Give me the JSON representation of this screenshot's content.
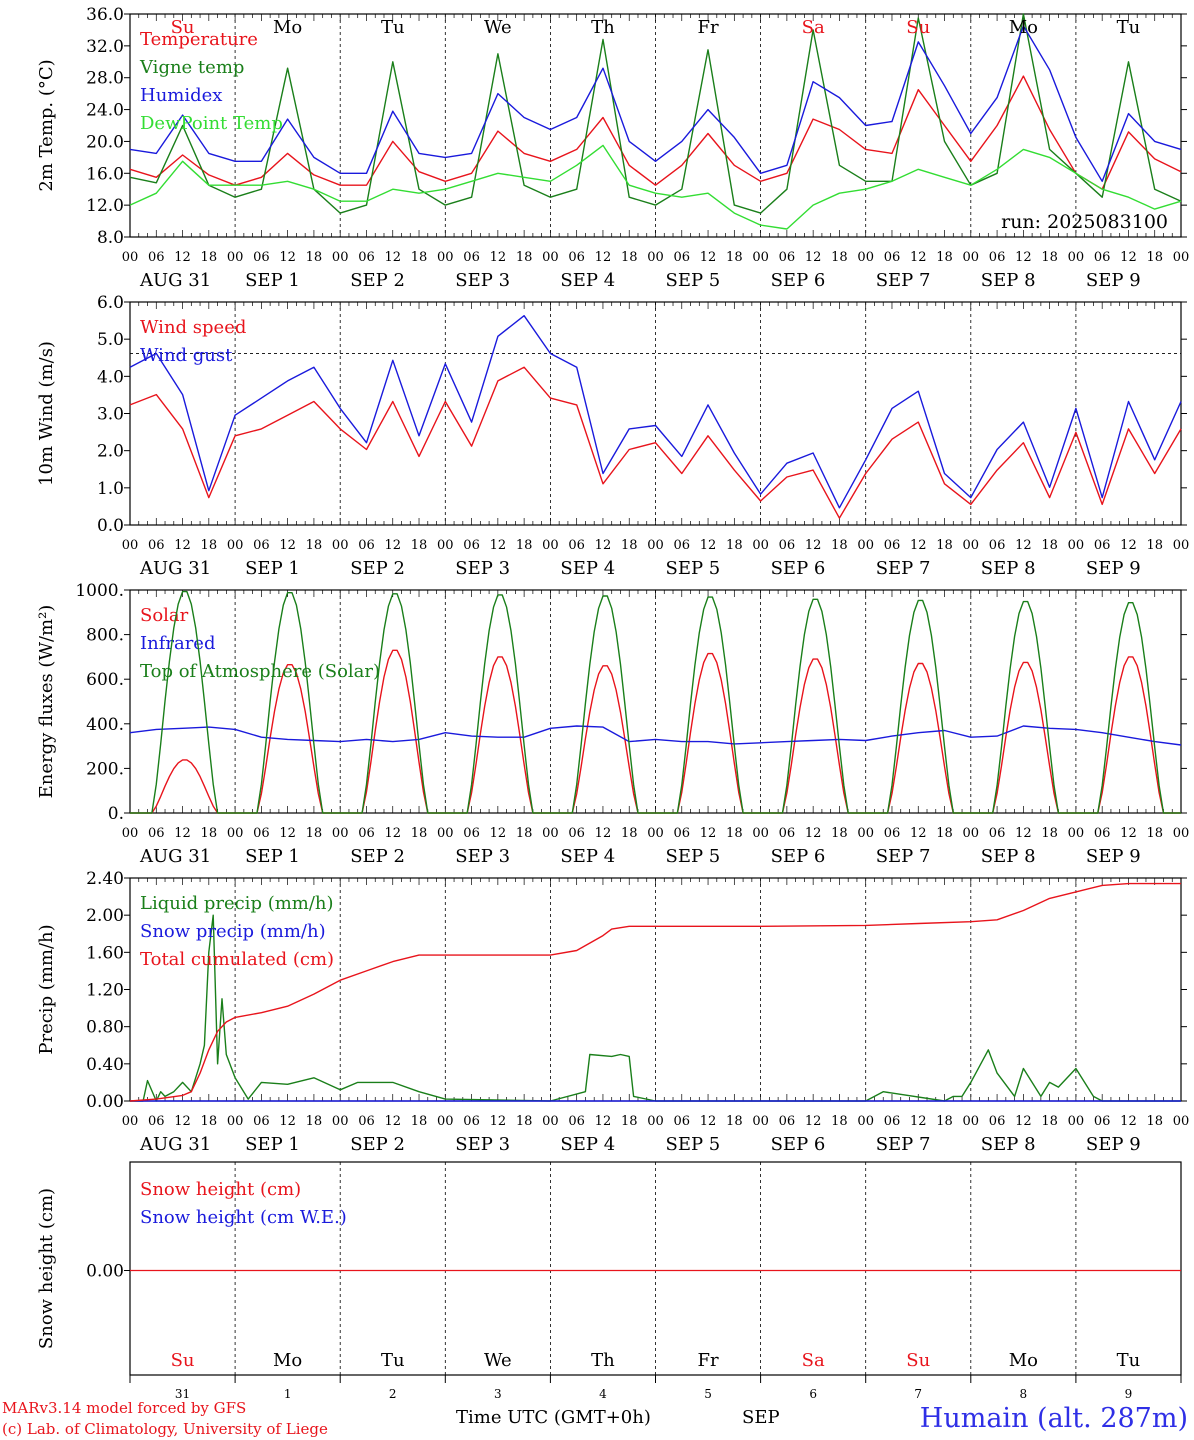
{
  "colors": {
    "red": "#e8141c",
    "green": "#1a7f1a",
    "blue": "#1a1adc",
    "lightgreen": "#33dd33",
    "axis": "#000000",
    "title": "#2f2fe6"
  },
  "days": [
    "Su",
    "Mo",
    "Tu",
    "We",
    "Th",
    "Fr",
    "Sa",
    "Su",
    "Mo",
    "Tu"
  ],
  "weekend_days": [
    0,
    6,
    7
  ],
  "date_labels": [
    "AUG 31",
    "SEP  1",
    "SEP  2",
    "SEP  3",
    "SEP  4",
    "SEP  5",
    "SEP  6",
    "SEP  7",
    "SEP  8",
    "SEP  9"
  ],
  "hour_ticks": [
    "00",
    "06",
    "12",
    "18"
  ],
  "day_numbers": [
    "31",
    "1",
    "2",
    "3",
    "4",
    "5",
    "6",
    "7",
    "8",
    "9"
  ],
  "run_label": "run: 2025083100",
  "footer": {
    "credit1": "MARv3.14 model forced by GFS",
    "credit2": "(c) Lab. of Climatology, University of Liege",
    "time_label": "Time UTC (GMT+0h)",
    "month": "SEP",
    "station": "Humain (alt. 287m)"
  },
  "chart_data": [
    {
      "type": "line",
      "ylabel": "2m Temp. (°C)",
      "ylim": [
        8,
        36
      ],
      "yticks": [
        "8.0",
        "12.0",
        "16.0",
        "20.0",
        "24.0",
        "28.0",
        "32.0",
        "36.0"
      ],
      "x_hours": [
        0,
        6,
        12,
        18,
        24,
        30,
        36,
        42,
        48,
        54,
        60,
        66,
        72,
        78,
        84,
        90,
        96,
        102,
        108,
        114,
        120,
        126,
        132,
        138,
        144,
        150,
        156,
        162,
        168,
        174,
        180,
        186,
        192,
        198,
        204,
        210,
        216,
        222,
        228,
        234,
        240
      ],
      "series": [
        {
          "name": "Temperature",
          "color": "red",
          "values": [
            16.5,
            15.5,
            18.3,
            15.8,
            14.5,
            15.5,
            18.5,
            15.8,
            14.5,
            14.5,
            20,
            16.2,
            15,
            16,
            21.3,
            18.5,
            17.5,
            19,
            23,
            17,
            14.5,
            17,
            21,
            17,
            15,
            16,
            22.8,
            21.5,
            19,
            18.5,
            26.5,
            22,
            17.5,
            22,
            28.2,
            21.5,
            16,
            14,
            21.2,
            17.8,
            16.2
          ]
        },
        {
          "name": "Vigne temp",
          "color": "green",
          "values": [
            15.5,
            14.8,
            22,
            14.5,
            13,
            14,
            29.2,
            14,
            11,
            12,
            30,
            14,
            12,
            13,
            31,
            14.5,
            13,
            14,
            32.8,
            13,
            12,
            14,
            31.5,
            12,
            11,
            14,
            34,
            17,
            15,
            15,
            35.5,
            20,
            14.5,
            16,
            36,
            19,
            16,
            13,
            30,
            14,
            12.5
          ]
        },
        {
          "name": "Humidex",
          "color": "blue",
          "values": [
            19,
            18.5,
            23.3,
            18.5,
            17.5,
            17.5,
            22.8,
            18,
            16,
            16,
            23.8,
            18.5,
            18,
            18.5,
            26,
            23,
            21.5,
            23,
            29.2,
            20,
            17.5,
            20,
            24,
            20.5,
            16,
            17,
            27.5,
            25.5,
            22,
            22.5,
            32.5,
            27,
            21,
            25.5,
            34.5,
            29,
            20.5,
            15,
            23.5,
            20,
            19
          ]
        },
        {
          "name": "DewPoint Temp",
          "color": "lightgreen",
          "values": [
            12,
            13.5,
            17.5,
            14.5,
            14.5,
            14.5,
            15,
            14,
            12.5,
            12.5,
            14,
            13.5,
            14,
            15,
            16,
            15.5,
            15,
            17,
            19.5,
            14.5,
            13.5,
            13,
            13.5,
            11,
            9.5,
            9,
            12,
            13.5,
            14,
            15,
            16.5,
            15.5,
            14.5,
            16.5,
            19,
            18,
            16,
            14,
            13,
            11.5,
            12.5
          ]
        }
      ]
    },
    {
      "type": "line",
      "ylabel": "10m Wind (m/s)",
      "ylim": [
        0,
        6.5
      ],
      "yticks": [
        "0.0",
        "1.0",
        "2.0",
        "3.0",
        "4.0",
        "5.0",
        "6.0"
      ],
      "dashed_reference": 5.0,
      "x_hours": [
        0,
        6,
        12,
        18,
        24,
        30,
        36,
        42,
        48,
        54,
        60,
        66,
        72,
        78,
        84,
        90,
        96,
        102,
        108,
        114,
        120,
        126,
        132,
        138,
        144,
        150,
        156,
        162,
        168,
        174,
        180,
        186,
        192,
        198,
        204,
        210,
        216,
        222,
        228,
        234,
        240
      ],
      "series": [
        {
          "name": "Wind speed",
          "color": "red",
          "values": [
            3.5,
            3.8,
            2.8,
            0.8,
            2.6,
            2.8,
            3.2,
            3.6,
            2.8,
            2.2,
            3.6,
            2,
            3.6,
            2.3,
            4.2,
            4.6,
            3.7,
            3.5,
            1.2,
            2.2,
            2.4,
            1.5,
            2.6,
            1.6,
            0.7,
            1.4,
            1.6,
            0.2,
            1.5,
            2.5,
            3,
            1.2,
            0.6,
            1.6,
            2.4,
            0.8,
            2.7,
            0.6,
            2.8,
            1.5,
            2.8
          ]
        },
        {
          "name": "Wind gust",
          "color": "blue",
          "values": [
            4.6,
            5.0,
            3.8,
            1.0,
            3.2,
            3.7,
            4.2,
            4.6,
            3.4,
            2.4,
            4.8,
            2.6,
            4.7,
            3.0,
            5.5,
            6.1,
            5.0,
            4.6,
            1.5,
            2.8,
            2.9,
            2.0,
            3.5,
            2.1,
            0.9,
            1.8,
            2.1,
            0.5,
            1.9,
            3.4,
            3.9,
            1.5,
            0.8,
            2.2,
            3.0,
            1.1,
            3.4,
            0.8,
            3.6,
            1.9,
            3.6
          ]
        }
      ]
    },
    {
      "type": "line",
      "ylabel": "Energy fluxes (W/m²)",
      "ylim": [
        0,
        1000
      ],
      "yticks": [
        "0.",
        "200.",
        "400.",
        "600.",
        "800.",
        "1000."
      ],
      "solar_noon_hour": 12.5,
      "solar_halfwidth_hours": 7.5,
      "series": [
        {
          "name": "Solar",
          "color": "red",
          "daily_peaks": [
            240,
            670,
            735,
            705,
            665,
            720,
            695,
            675,
            680,
            705
          ]
        },
        {
          "name": "Infrared",
          "color": "blue",
          "x_hours": [
            0,
            6,
            12,
            18,
            24,
            30,
            36,
            42,
            48,
            54,
            60,
            66,
            72,
            78,
            84,
            90,
            96,
            102,
            108,
            114,
            120,
            126,
            132,
            138,
            144,
            150,
            156,
            162,
            168,
            174,
            180,
            186,
            192,
            198,
            204,
            210,
            216,
            222,
            228,
            234,
            240
          ],
          "values": [
            360,
            375,
            380,
            385,
            375,
            340,
            330,
            325,
            320,
            330,
            320,
            330,
            360,
            345,
            340,
            340,
            380,
            390,
            385,
            320,
            330,
            320,
            320,
            310,
            315,
            320,
            325,
            330,
            325,
            345,
            360,
            370,
            340,
            345,
            390,
            380,
            375,
            360,
            340,
            320,
            305
          ]
        },
        {
          "name": "Top of Atmosphere (Solar)",
          "color": "green",
          "daily_peaks": [
            1000,
            995,
            990,
            985,
            980,
            975,
            965,
            960,
            955,
            950
          ]
        }
      ]
    },
    {
      "type": "line",
      "ylabel": "Precip (mm/h)",
      "ylim": [
        0,
        2.4
      ],
      "yticks": [
        "0.00",
        "0.40",
        "0.80",
        "1.20",
        "1.60",
        "2.00",
        "2.40"
      ],
      "series": [
        {
          "name": "Liquid precip (mm/h)",
          "color": "green",
          "x_hours": [
            0,
            3,
            4,
            6,
            7,
            8,
            10,
            12,
            14,
            16,
            17,
            18,
            19,
            20,
            21,
            22,
            24,
            27,
            30,
            36,
            42,
            48,
            52,
            56,
            60,
            66,
            72,
            96,
            104,
            105,
            110,
            112,
            114,
            115,
            120,
            168,
            172,
            186,
            188,
            190,
            192,
            196,
            198,
            202,
            204,
            208,
            210,
            212,
            216,
            220,
            222,
            224,
            226,
            228,
            240
          ],
          "values": [
            0,
            0,
            0.22,
            0,
            0.1,
            0.05,
            0.1,
            0.2,
            0.1,
            0.4,
            0.6,
            1.6,
            2.0,
            0.4,
            1.1,
            0.5,
            0.25,
            0.02,
            0.2,
            0.18,
            0.25,
            0.12,
            0.2,
            0.2,
            0.2,
            0.1,
            0.02,
            0,
            0.1,
            0.5,
            0.48,
            0.5,
            0.48,
            0.05,
            0,
            0,
            0.1,
            0,
            0.05,
            0.05,
            0.2,
            0.55,
            0.3,
            0.05,
            0.35,
            0.05,
            0.2,
            0.15,
            0.35,
            0.05,
            0,
            0,
            0,
            0,
            0
          ]
        },
        {
          "name": "Snow precip (mm/h)",
          "color": "blue",
          "x_hours": [
            0,
            240
          ],
          "values": [
            0,
            0
          ]
        },
        {
          "name": "Total cumulated (cm)",
          "color": "red",
          "x_hours": [
            0,
            6,
            12,
            14,
            16,
            18,
            20,
            22,
            24,
            30,
            36,
            42,
            48,
            54,
            60,
            66,
            72,
            84,
            96,
            102,
            108,
            110,
            114,
            120,
            144,
            168,
            180,
            192,
            198,
            204,
            210,
            216,
            222,
            228,
            240
          ],
          "values": [
            0,
            0.02,
            0.06,
            0.1,
            0.3,
            0.55,
            0.75,
            0.85,
            0.9,
            0.95,
            1.02,
            1.15,
            1.3,
            1.4,
            1.5,
            1.57,
            1.57,
            1.57,
            1.57,
            1.62,
            1.78,
            1.85,
            1.88,
            1.88,
            1.88,
            1.89,
            1.91,
            1.93,
            1.95,
            2.05,
            2.18,
            2.25,
            2.32,
            2.34,
            2.34
          ]
        }
      ]
    },
    {
      "type": "line",
      "ylabel": "Snow height (cm)",
      "yticks": [
        "0.00"
      ],
      "series": [
        {
          "name": "Snow height (cm)",
          "color": "red",
          "values": [
            0,
            0
          ]
        },
        {
          "name": "Snow height (cm W.E.)",
          "color": "blue",
          "values": []
        }
      ]
    }
  ]
}
